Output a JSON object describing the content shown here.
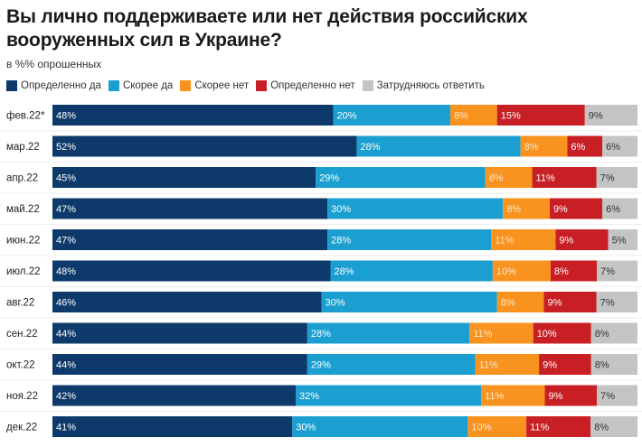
{
  "chart_data": {
    "type": "bar",
    "orientation": "horizontal",
    "stacked": true,
    "title": "Вы лично поддерживаете или нет действия российских вооруженных сил в Украине?",
    "subtitle": "в %% опрошенных",
    "legend_position": "top-left",
    "grid": false,
    "categories": [
      "фев.22*",
      "мар.22",
      "апр.22",
      "май.22",
      "июн.22",
      "июл.22",
      "авг.22",
      "сен.22",
      "окт.22",
      "ноя.22",
      "дек.22"
    ],
    "series": [
      {
        "name": "Определенно да",
        "color": "#0d3a6b",
        "label_color": "#ffffff",
        "values": [
          48,
          52,
          45,
          47,
          47,
          48,
          46,
          44,
          44,
          42,
          41
        ]
      },
      {
        "name": "Скорее да",
        "color": "#1b9fd1",
        "label_color": "#ffffff",
        "values": [
          20,
          28,
          29,
          30,
          28,
          28,
          30,
          28,
          29,
          32,
          30
        ]
      },
      {
        "name": "Скорее нет",
        "color": "#f7931e",
        "label_color": "#fde7c8",
        "values": [
          8,
          8,
          8,
          8,
          11,
          10,
          8,
          11,
          11,
          11,
          10
        ]
      },
      {
        "name": "Определенно нет",
        "color": "#c81f25",
        "label_color": "#ffffff",
        "values": [
          15,
          6,
          11,
          9,
          9,
          8,
          9,
          10,
          9,
          9,
          11
        ]
      },
      {
        "name": "Затрудняюсь ответить",
        "color": "#c4c4c4",
        "label_color": "#333333",
        "values": [
          9,
          6,
          7,
          6,
          5,
          7,
          7,
          8,
          8,
          7,
          8
        ]
      }
    ],
    "value_suffix": "%"
  }
}
